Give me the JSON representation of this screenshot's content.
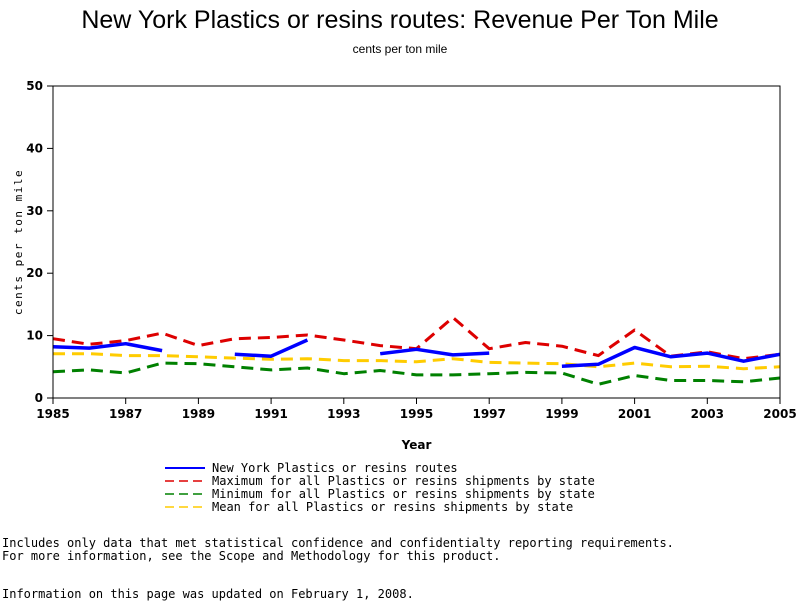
{
  "chart_data": {
    "type": "line",
    "title": "New York Plastics or resins routes: Revenue Per Ton Mile",
    "subtitle": "cents per ton mile",
    "xlabel": "Year",
    "ylabel": "cents per ton mile",
    "xlim": [
      1985,
      2005
    ],
    "ylim": [
      0,
      50
    ],
    "x_ticks": [
      "1985",
      "1987",
      "1989",
      "1991",
      "1993",
      "1995",
      "1997",
      "1999",
      "2001",
      "2003",
      "2005"
    ],
    "y_ticks": [
      "0",
      "10",
      "20",
      "30",
      "40",
      "50"
    ],
    "grid": false,
    "legend_position": "bottom",
    "x": [
      1985,
      1986,
      1987,
      1988,
      1989,
      1990,
      1991,
      1992,
      1993,
      1994,
      1995,
      1996,
      1997,
      1998,
      1999,
      2000,
      2001,
      2002,
      2003,
      2004,
      2005
    ],
    "series": [
      {
        "name": "New York Plastics or resins routes",
        "color": "#0000ff",
        "style": "solid",
        "values": [
          8.2,
          8.0,
          8.7,
          7.6,
          null,
          7.0,
          6.7,
          9.3,
          null,
          7.1,
          7.8,
          6.9,
          7.2,
          null,
          5.1,
          5.4,
          8.1,
          6.6,
          7.2,
          5.9,
          7.0
        ]
      },
      {
        "name": "Maximum for all Plastics or resins shipments by state",
        "color": "#dd0000",
        "style": "dashed",
        "values": [
          9.5,
          8.6,
          9.2,
          10.4,
          8.4,
          9.5,
          9.7,
          10.1,
          9.3,
          8.4,
          7.9,
          12.9,
          7.9,
          8.9,
          8.3,
          6.8,
          10.9,
          6.7,
          7.4,
          6.3,
          7.0
        ]
      },
      {
        "name": "Minimum for all Plastics or resins shipments by state",
        "color": "#008000",
        "style": "dashed",
        "values": [
          4.2,
          4.5,
          4.0,
          5.6,
          5.5,
          5.0,
          4.5,
          4.8,
          3.9,
          4.4,
          3.7,
          3.7,
          3.9,
          4.1,
          4.0,
          2.2,
          3.6,
          2.8,
          2.8,
          2.6,
          3.2
        ]
      },
      {
        "name": "Mean for all Plastics or resins shipments by state",
        "color": "#ffcc00",
        "style": "dashed",
        "values": [
          7.1,
          7.1,
          6.8,
          6.8,
          6.6,
          6.4,
          6.2,
          6.3,
          6.0,
          6.0,
          5.8,
          6.3,
          5.7,
          5.6,
          5.5,
          5.0,
          5.6,
          5.0,
          5.1,
          4.7,
          5.0
        ]
      }
    ]
  },
  "notes": {
    "line1": "Includes only data that met statistical confidence and confidentialty reporting requirements.",
    "line2": "For more information, see the Scope and Methodology for this product.",
    "line3": "Information on this page was updated on February 1, 2008."
  }
}
